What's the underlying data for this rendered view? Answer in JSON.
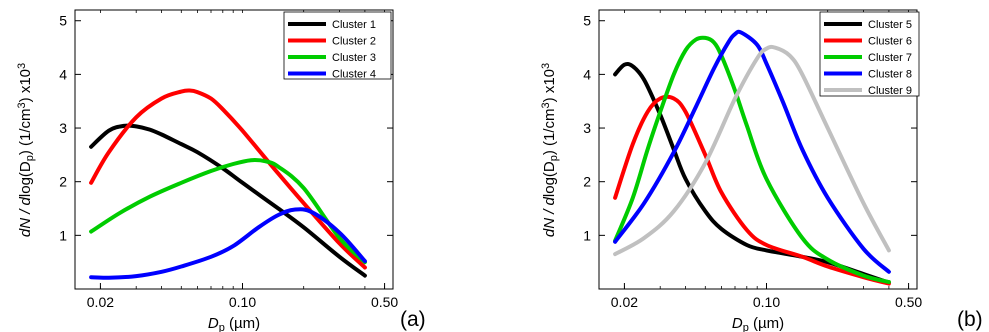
{
  "chart_data": [
    {
      "type": "line",
      "panel_label": "(a)",
      "xlabel": {
        "main": "D",
        "sub": "p",
        "unit": " (µm)"
      },
      "ylabel": {
        "part1": "dN / d",
        "part2": "log(D",
        "sub": "p",
        "part3": ")   (1/cm",
        "sup": "3",
        "part4": ") x10",
        "sup2": "3"
      },
      "x_scale": "log",
      "xlim": [
        0.015,
        0.55
      ],
      "ylim": [
        0,
        5.2
      ],
      "x_ticks": [
        0.02,
        0.1,
        0.5
      ],
      "x_tick_labels": [
        "0.02",
        "0.10",
        "0.50"
      ],
      "y_ticks": [
        1,
        2,
        3,
        4,
        5
      ],
      "y_tick_labels": [
        "1",
        "2",
        "3",
        "4",
        "5"
      ],
      "legend_position": "top-right",
      "series": [
        {
          "name": "Cluster 1",
          "color": "#000000",
          "x": [
            0.018,
            0.022,
            0.026,
            0.03,
            0.035,
            0.04,
            0.05,
            0.06,
            0.08,
            0.1,
            0.15,
            0.2,
            0.3,
            0.4
          ],
          "y": [
            2.65,
            2.95,
            3.04,
            3.03,
            2.97,
            2.88,
            2.7,
            2.55,
            2.25,
            1.98,
            1.5,
            1.15,
            0.6,
            0.25
          ]
        },
        {
          "name": "Cluster 2",
          "color": "#ff0000",
          "x": [
            0.018,
            0.022,
            0.03,
            0.04,
            0.05,
            0.055,
            0.06,
            0.07,
            0.08,
            0.1,
            0.15,
            0.2,
            0.3,
            0.4
          ],
          "y": [
            1.98,
            2.55,
            3.2,
            3.55,
            3.68,
            3.7,
            3.67,
            3.55,
            3.35,
            2.95,
            2.15,
            1.6,
            0.85,
            0.4
          ]
        },
        {
          "name": "Cluster 3",
          "color": "#00cc00",
          "x": [
            0.018,
            0.025,
            0.035,
            0.05,
            0.07,
            0.09,
            0.11,
            0.13,
            0.15,
            0.2,
            0.3,
            0.4
          ],
          "y": [
            1.07,
            1.42,
            1.72,
            1.98,
            2.2,
            2.33,
            2.4,
            2.38,
            2.28,
            1.88,
            0.95,
            0.5
          ]
        },
        {
          "name": "Cluster 4",
          "color": "#0000ff",
          "x": [
            0.018,
            0.022,
            0.03,
            0.04,
            0.05,
            0.07,
            0.09,
            0.12,
            0.15,
            0.18,
            0.22,
            0.3,
            0.4
          ],
          "y": [
            0.22,
            0.21,
            0.24,
            0.32,
            0.42,
            0.6,
            0.8,
            1.15,
            1.38,
            1.48,
            1.43,
            1.05,
            0.52
          ]
        }
      ]
    },
    {
      "type": "line",
      "panel_label": "(b)",
      "xlabel": {
        "main": "D",
        "sub": "p",
        "unit": " (µm)"
      },
      "ylabel": {
        "part1": "dN / d",
        "part2": "log(D",
        "sub": "p",
        "part3": ")   (1/cm",
        "sup": "3",
        "part4": ") x10",
        "sup2": "3"
      },
      "x_scale": "log",
      "xlim": [
        0.015,
        0.55
      ],
      "ylim": [
        0,
        5.2
      ],
      "x_ticks": [
        0.02,
        0.1,
        0.5
      ],
      "x_tick_labels": [
        "0.02",
        "0.10",
        "0.50"
      ],
      "y_ticks": [
        1,
        2,
        3,
        4,
        5
      ],
      "y_tick_labels": [
        "1",
        "2",
        "3",
        "4",
        "5"
      ],
      "legend_position": "top-right",
      "series": [
        {
          "name": "Cluster 5",
          "color": "#000000",
          "x": [
            0.018,
            0.02,
            0.022,
            0.025,
            0.03,
            0.035,
            0.04,
            0.05,
            0.06,
            0.08,
            0.1,
            0.15,
            0.2,
            0.3,
            0.4
          ],
          "y": [
            4.0,
            4.18,
            4.15,
            3.9,
            3.25,
            2.6,
            2.05,
            1.45,
            1.12,
            0.82,
            0.72,
            0.6,
            0.5,
            0.28,
            0.12
          ]
        },
        {
          "name": "Cluster 6",
          "color": "#ff0000",
          "x": [
            0.018,
            0.022,
            0.026,
            0.03,
            0.035,
            0.04,
            0.05,
            0.06,
            0.08,
            0.1,
            0.15,
            0.2,
            0.3,
            0.4
          ],
          "y": [
            1.7,
            2.7,
            3.3,
            3.55,
            3.55,
            3.3,
            2.5,
            1.8,
            1.1,
            0.82,
            0.6,
            0.42,
            0.22,
            0.1
          ]
        },
        {
          "name": "Cluster 7",
          "color": "#00cc00",
          "x": [
            0.018,
            0.022,
            0.026,
            0.03,
            0.035,
            0.04,
            0.045,
            0.05,
            0.055,
            0.06,
            0.07,
            0.08,
            0.1,
            0.15,
            0.2,
            0.3,
            0.4
          ],
          "y": [
            0.9,
            1.7,
            2.6,
            3.3,
            4.0,
            4.45,
            4.65,
            4.68,
            4.6,
            4.35,
            3.7,
            3.05,
            2.05,
            0.95,
            0.55,
            0.25,
            0.13
          ]
        },
        {
          "name": "Cluster 8",
          "color": "#0000ff",
          "x": [
            0.018,
            0.025,
            0.035,
            0.045,
            0.055,
            0.065,
            0.07,
            0.075,
            0.09,
            0.1,
            0.12,
            0.15,
            0.2,
            0.3,
            0.4
          ],
          "y": [
            0.88,
            1.6,
            2.55,
            3.4,
            4.1,
            4.6,
            4.75,
            4.78,
            4.55,
            4.2,
            3.5,
            2.6,
            1.7,
            0.75,
            0.32
          ]
        },
        {
          "name": "Cluster 9",
          "color": "#c0c0c0",
          "x": [
            0.018,
            0.025,
            0.035,
            0.05,
            0.07,
            0.09,
            0.1,
            0.11,
            0.13,
            0.15,
            0.2,
            0.3,
            0.4
          ],
          "y": [
            0.65,
            0.95,
            1.45,
            2.35,
            3.55,
            4.3,
            4.48,
            4.5,
            4.35,
            4.0,
            3.0,
            1.6,
            0.72
          ]
        }
      ]
    }
  ]
}
